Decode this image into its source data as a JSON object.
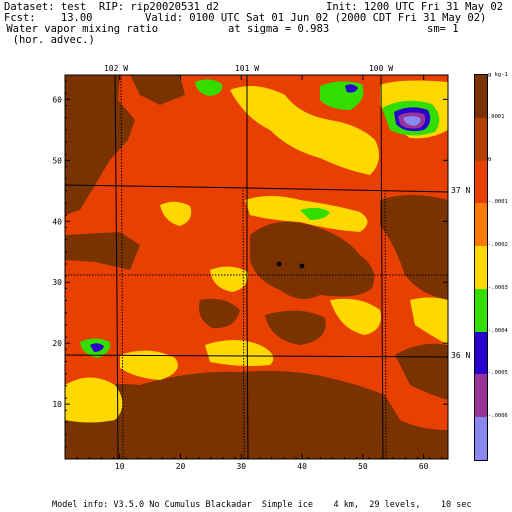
{
  "header": {
    "dataset": "Dataset: test  RIP: rip20020531 d2",
    "init": "Init: 1200 UTC Fri 31 May 02",
    "fcst": "Fcst:    13.00",
    "valid": "Valid: 0100 UTC Sat 01 Jun 02 (2000 CDT Fri 31 May 02)",
    "field": " Water vapor mixing ratio",
    "sigma": "at sigma = 0.983",
    "sm": "sm= 1",
    "field2": "  (hor. advec.)"
  },
  "footer": "Model info: V3.5.0 No Cumulus Blackadar  Simple ice    4 km,  29 levels,    10 sec",
  "lon_labels": [
    "102 W",
    "101 W",
    "100 W"
  ],
  "lat_labels": [
    "37 N",
    "36 N"
  ],
  "colorbar": {
    "labels": [
      "g kg-1",
      ".0001",
      "0",
      "-.0001",
      "-.0002",
      "-.0003",
      "-.0004",
      "-.0005",
      "-.0006"
    ],
    "colors": [
      "#7a3300",
      "#b34000",
      "#e84000",
      "#ff7a00",
      "#ffd800",
      "#33dd00",
      "#2a00cc",
      "#993399",
      "#8888ee"
    ]
  },
  "chart_data": {
    "type": "heatmap",
    "title": "Water vapor mixing ratio (hor. advec.)",
    "xlabel": "",
    "ylabel": "",
    "xlim": [
      1,
      64
    ],
    "ylim": [
      1,
      64
    ],
    "x_ticks": [
      10,
      20,
      30,
      40,
      50,
      60
    ],
    "y_ticks": [
      10,
      20,
      30,
      40,
      50,
      60
    ],
    "units": "g kg-1",
    "levels": [
      0.0001,
      0,
      -0.0001,
      -0.0002,
      -0.0003,
      -0.0004,
      -0.0005,
      -0.0006
    ],
    "features": [
      {
        "label": "min",
        "x": 58,
        "y": 58,
        "value": -0.0006
      },
      {
        "label": "min",
        "x": 7,
        "y": 19,
        "value": -0.0004
      },
      {
        "label": "min",
        "x": 48,
        "y": 62,
        "value": -0.0003
      }
    ],
    "markers": [
      {
        "x": 35.5,
        "y": 33.5
      },
      {
        "x": 39.5,
        "y": 33.2
      }
    ]
  }
}
